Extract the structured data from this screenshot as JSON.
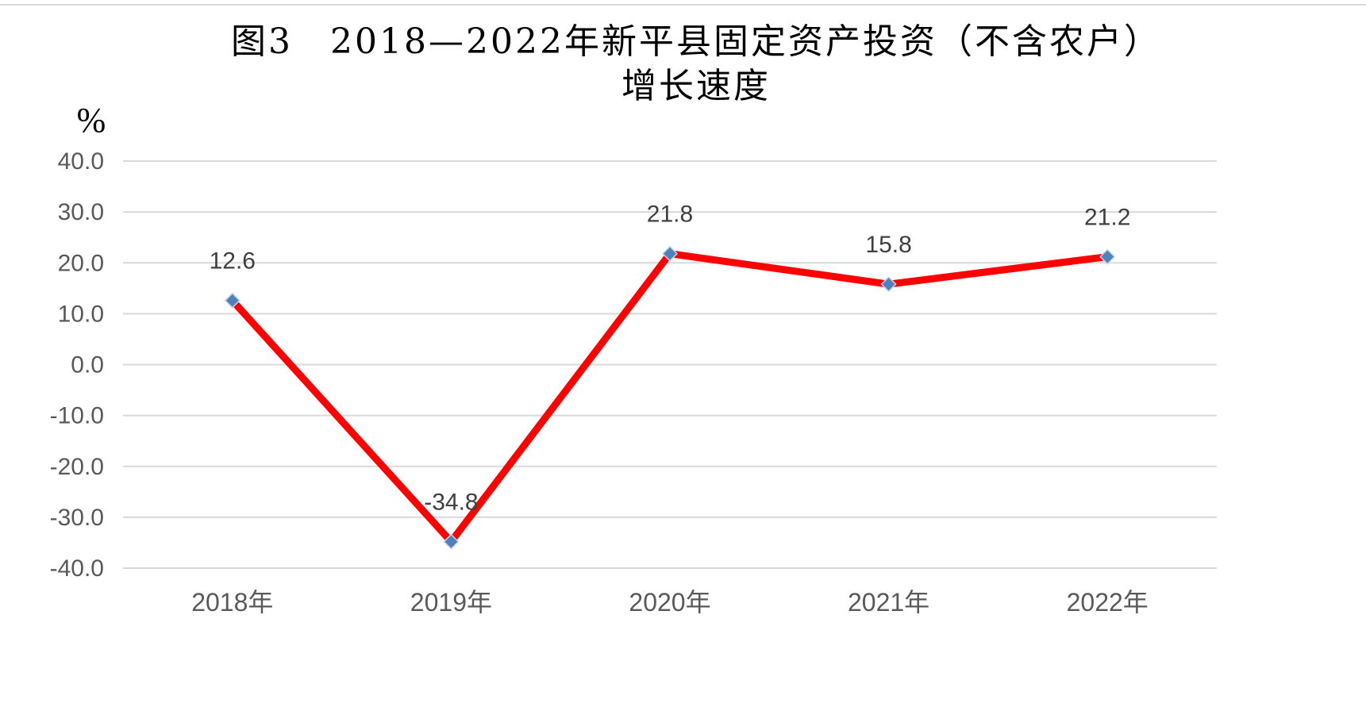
{
  "chart_data": {
    "type": "line",
    "title_line1": "图3　2018—2022年新平县固定资产投资（不含农户）",
    "title_line2": "增长速度",
    "unit": "%",
    "categories": [
      "2018年",
      "2019年",
      "2020年",
      "2021年",
      "2022年"
    ],
    "values": [
      12.6,
      -34.8,
      21.8,
      15.8,
      21.2
    ],
    "data_labels": [
      "12.6",
      "-34.8",
      "21.8",
      "15.8",
      "21.2"
    ],
    "ylim": [
      -40,
      40
    ],
    "yticks": [
      40,
      30,
      20,
      10,
      0,
      -10,
      -20,
      -30,
      -40
    ],
    "ytick_labels": [
      "40.0",
      "30.0",
      "20.0",
      "10.0",
      "0.0",
      "-10.0",
      "-20.0",
      "-30.0",
      "-40.0"
    ],
    "grid": true,
    "legend": "none",
    "line_color": "#ff0000",
    "marker_color": "#4f81bd",
    "marker": "diamond"
  }
}
